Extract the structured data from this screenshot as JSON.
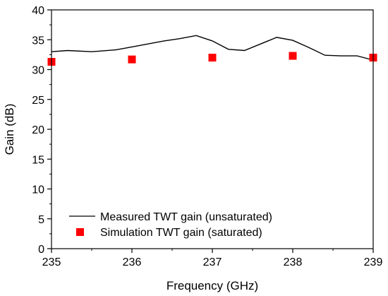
{
  "chart_data": {
    "type": "line",
    "xlabel": "Frequency (GHz)",
    "ylabel": "Gain (dB)",
    "xlim": [
      235,
      239
    ],
    "ylim": [
      0,
      40
    ],
    "x_ticks": [
      235,
      236,
      237,
      238,
      239
    ],
    "y_ticks": [
      0,
      5,
      10,
      15,
      20,
      25,
      30,
      35,
      40
    ],
    "legend_position": "bottom-left",
    "series": [
      {
        "name": "Measured TWT gain (unsaturated)",
        "style": "line",
        "color": "#000000",
        "x": [
          235.0,
          235.2,
          235.5,
          235.8,
          236.0,
          236.2,
          236.4,
          236.6,
          236.8,
          237.0,
          237.2,
          237.4,
          237.6,
          237.8,
          238.0,
          238.2,
          238.4,
          238.6,
          238.8,
          239.0
        ],
        "y": [
          33.0,
          33.2,
          33.0,
          33.3,
          33.8,
          34.3,
          34.8,
          35.2,
          35.7,
          34.8,
          33.4,
          33.2,
          34.3,
          35.4,
          34.9,
          33.7,
          32.4,
          32.3,
          32.3,
          31.6
        ]
      },
      {
        "name": "Simulation TWT gain (saturated)",
        "style": "scatter",
        "color": "#ff0000",
        "x": [
          235,
          236,
          237,
          238,
          239
        ],
        "y": [
          31.3,
          31.7,
          32.0,
          32.3,
          32.0
        ]
      }
    ]
  }
}
